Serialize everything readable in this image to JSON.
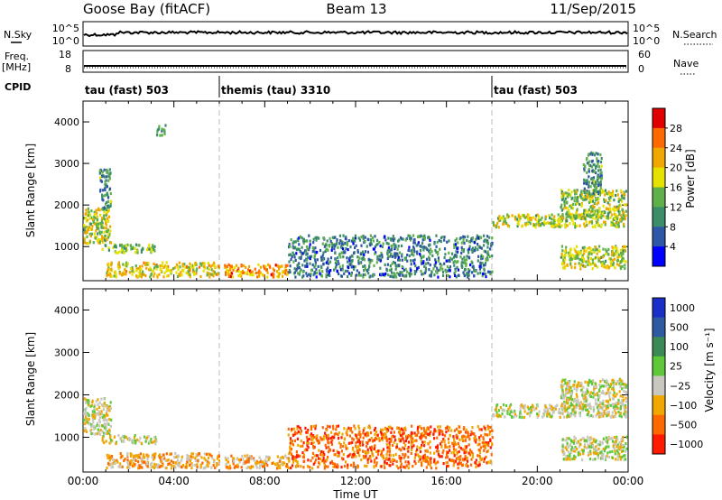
{
  "header": {
    "station": "Goose Bay (fitACF)",
    "beam": "Beam 13",
    "date": "11/Sep/2015"
  },
  "strips": {
    "nsky_label": "N.Sky",
    "nsky_ticks": [
      "10^5",
      "10^0"
    ],
    "nsearch_label": "N.Search",
    "nsearch_ticks": [
      "10^5",
      "10^0"
    ],
    "freq_label": "Freq.",
    "freq_unit": "[MHz]",
    "freq_ticks": [
      "18",
      "8"
    ],
    "nave_label": "Nave",
    "nave_ticks": [
      "60",
      "0"
    ],
    "cpid_label": "CPID"
  },
  "cpid_segments": [
    {
      "label": "tau (fast) 503",
      "start_hour": 0
    },
    {
      "label": "themis (tau) 3310",
      "start_hour": 6
    },
    {
      "label": "tau (fast) 503",
      "start_hour": 18
    }
  ],
  "chart_data": [
    {
      "type": "heatmap",
      "name": "power-panel",
      "ylabel": "Slant Range [km]",
      "xlabel": "",
      "x_range_hours": [
        0,
        24
      ],
      "ylim": [
        180,
        4500
      ],
      "y_ticks": [
        1000,
        2000,
        3000,
        4000
      ],
      "colorbar": {
        "title": "Power [dB]",
        "range": [
          0,
          32
        ],
        "ticks": [
          4,
          8,
          12,
          16,
          20,
          24,
          28
        ],
        "tick_labels": [
          "4",
          "8",
          "12",
          "16",
          "20",
          "24",
          "28"
        ],
        "colors": [
          "#0000ff",
          "#2e58a6",
          "#3c8d69",
          "#5fb04a",
          "#e6e200",
          "#f0a800",
          "#ff6a00",
          "#e00000"
        ]
      },
      "regions": [
        {
          "x": [
            0.0,
            1.2
          ],
          "y": [
            1100,
            1950
          ],
          "level": 0.55
        },
        {
          "x": [
            0.7,
            1.2
          ],
          "y": [
            1900,
            2900
          ],
          "level": 0.3
        },
        {
          "x": [
            0.8,
            3.2
          ],
          "y": [
            880,
            1080
          ],
          "level": 0.45
        },
        {
          "x": [
            1.0,
            6.0
          ],
          "y": [
            300,
            650
          ],
          "level": 0.6
        },
        {
          "x": [
            6.2,
            9.0
          ],
          "y": [
            300,
            600
          ],
          "level": 0.75
        },
        {
          "x": [
            3.2,
            3.6
          ],
          "y": [
            3700,
            3950
          ],
          "level": 0.3
        },
        {
          "x": [
            9.0,
            18.0
          ],
          "y": [
            300,
            1300
          ],
          "level": 0.25
        },
        {
          "x": [
            18.0,
            23.9
          ],
          "y": [
            1500,
            1800
          ],
          "level": 0.55
        },
        {
          "x": [
            21.0,
            23.9
          ],
          "y": [
            1700,
            2400
          ],
          "level": 0.5
        },
        {
          "x": [
            21.0,
            23.9
          ],
          "y": [
            500,
            1050
          ],
          "level": 0.55
        },
        {
          "x": [
            22.0,
            22.8
          ],
          "y": [
            2300,
            3300
          ],
          "level": 0.3
        }
      ]
    },
    {
      "type": "heatmap",
      "name": "velocity-panel",
      "ylabel": "Slant Range [km]",
      "xlabel": "Time UT",
      "x_range_hours": [
        0,
        24
      ],
      "x_ticks": [
        "00:00",
        "04:00",
        "08:00",
        "12:00",
        "16:00",
        "20:00",
        "00:00"
      ],
      "ylim": [
        180,
        4500
      ],
      "y_ticks": [
        1000,
        2000,
        3000,
        4000
      ],
      "colorbar": {
        "title": "Velocity [m s⁻¹]",
        "ticks": [
          "1000",
          "500",
          "100",
          "25",
          "−25",
          "−100",
          "−500",
          "−1000"
        ],
        "colors": [
          "#1a2fc8",
          "#2d5aa0",
          "#3b8a55",
          "#5ec83a",
          "#c8c8c0",
          "#f0a800",
          "#ff6a00",
          "#ff1a00"
        ]
      },
      "regions": [
        {
          "x": [
            0.0,
            1.2
          ],
          "y": [
            1100,
            1950
          ],
          "level": 4
        },
        {
          "x": [
            0.8,
            3.2
          ],
          "y": [
            880,
            1080
          ],
          "level": 4
        },
        {
          "x": [
            1.0,
            6.0
          ],
          "y": [
            300,
            650
          ],
          "level": 5
        },
        {
          "x": [
            6.2,
            9.0
          ],
          "y": [
            300,
            600
          ],
          "level": 5
        },
        {
          "x": [
            9.0,
            18.0
          ],
          "y": [
            300,
            1300
          ],
          "level": 6
        },
        {
          "x": [
            18.0,
            23.9
          ],
          "y": [
            1500,
            1800
          ],
          "level": 4
        },
        {
          "x": [
            21.0,
            23.9
          ],
          "y": [
            1700,
            2400
          ],
          "level": 4
        },
        {
          "x": [
            21.0,
            23.9
          ],
          "y": [
            500,
            1050
          ],
          "level": 4
        }
      ]
    }
  ]
}
